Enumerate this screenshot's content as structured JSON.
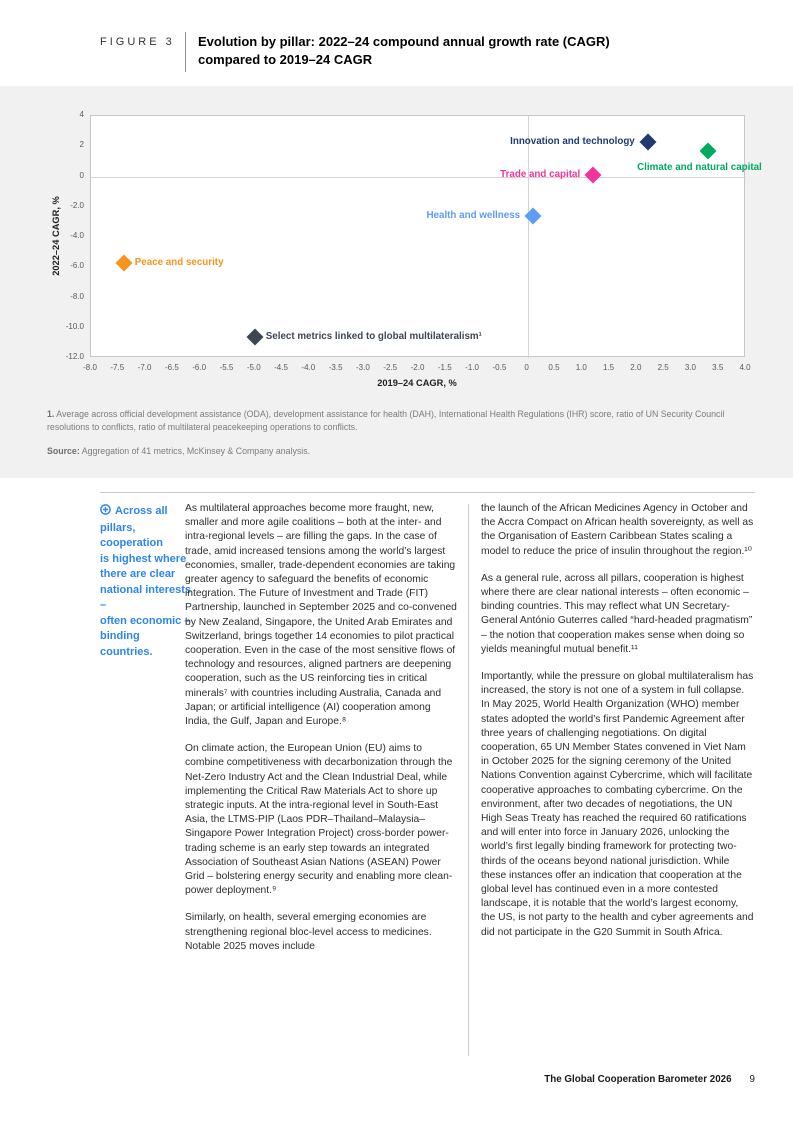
{
  "figure": {
    "label": "FIGURE 3",
    "title_line1": "Evolution by pillar: 2022–24 compound annual growth rate (CAGR)",
    "title_line2": "compared to 2019–24 CAGR"
  },
  "chart_data": {
    "type": "scatter",
    "xlabel": "2019–24 CAGR, %",
    "ylabel": "2022–24 CAGR, %",
    "xlim": [
      -8.0,
      4.0
    ],
    "ylim": [
      -12.0,
      4.0
    ],
    "x_ticks": [
      "-8.0",
      "-7.5",
      "-7.0",
      "-6.5",
      "-6.0",
      "-5.5",
      "-5.0",
      "-4.5",
      "-4.0",
      "-3.5",
      "-3.0",
      "-2.5",
      "-2.0",
      "-1.5",
      "-1.0",
      "-0.5",
      "0",
      "0.5",
      "1.0",
      "1.5",
      "2.0",
      "2.5",
      "3.0",
      "3.5",
      "4.0"
    ],
    "y_ticks": [
      "4",
      "2",
      "0",
      "-2.0",
      "-4.0",
      "-6.0",
      "-8.0",
      "-10.0",
      "-12.0"
    ],
    "grid": "zero-reference-lines-only",
    "legend_position": "labels-next-to-points",
    "points": [
      {
        "label": "Innovation and technology",
        "x": 2.2,
        "y": 2.3,
        "color": "#203a70",
        "label_side": "left"
      },
      {
        "label": "Climate and natural capital",
        "x": 3.3,
        "y": 1.7,
        "color": "#00ab60",
        "label_side": "below"
      },
      {
        "label": "Trade and capital",
        "x": 1.2,
        "y": 0.1,
        "color": "#f5349b",
        "label_side": "left"
      },
      {
        "label": "Health and wellness",
        "x": 0.1,
        "y": -2.6,
        "color": "#5e9cf2",
        "label_side": "left"
      },
      {
        "label": "Peace and security",
        "x": -7.4,
        "y": -5.7,
        "color": "#f7941e",
        "label_side": "right"
      },
      {
        "label": "Select metrics linked to global multilateralism¹",
        "x": -5.0,
        "y": -10.6,
        "color": "#3d4653",
        "label_side": "right"
      }
    ]
  },
  "notes": {
    "note1_prefix": "1.",
    "note1_text": " Average across official development assistance (ODA), development assistance for health (DAH), International Health Regulations (IHR) score, ratio of UN Security Council resolutions to conflicts, ratio of multilateral peacekeeping operations to conflicts.",
    "source_prefix": "Source:",
    "source_text": " Aggregation of 41 metrics, McKinsey & Company analysis."
  },
  "callout": {
    "color": "#2e86ea",
    "text": "Across all\npillars, cooperation\nis highest where\nthere are clear\nnational interests –\noften economic –\nbinding countries."
  },
  "articles": {
    "middle": [
      "As multilateral approaches become more fraught, new, smaller and more agile coalitions – both at the inter- and intra-regional levels – are filling the gaps. In the case of trade, amid increased tensions among the world’s largest economies, smaller, trade-dependent economies are taking greater agency to safeguard the benefits of economic integration. The Future of Investment and Trade (FIT) Partnership, launched in September 2025 and co-convened by New Zealand, Singapore, the United Arab Emirates and Switzerland, brings together 14 economies to pilot practical cooperation. Even in the case of the most sensitive flows of technology and resources, aligned partners are deepening cooperation, such as the US reinforcing ties in critical minerals⁷ with countries including Australia, Canada and Japan; or artificial intelligence (AI) cooperation among India, the Gulf, Japan and Europe.⁸",
      "On climate action, the European Union (EU) aims to combine competitiveness with decarbonization through the Net-Zero Industry Act and the Clean Industrial Deal, while implementing the Critical Raw Materials Act to shore up strategic inputs. At the intra-regional level in South-East Asia, the LTMS-PIP (Laos PDR–Thailand–Malaysia–Singapore Power Integration Project) cross-border power-trading scheme is an early step towards an integrated Association of Southeast Asian Nations (ASEAN) Power Grid – bolstering energy security and enabling more clean-power deployment.⁹",
      "Similarly, on health, several emerging economies are strengthening regional bloc-level access to medicines. Notable 2025 moves include"
    ],
    "right": [
      "the launch of the African Medicines Agency in October and the Accra Compact on African health sovereignty, as well as the Organisation of Eastern Caribbean States scaling a model to reduce the price of insulin throughout the region.¹⁰",
      "As a general rule, across all pillars, cooperation is highest where there are clear national interests – often economic – binding countries. This may reflect what UN Secretary-General António Guterres called “hard-headed pragmatism” – the notion that cooperation makes sense when doing so yields meaningful mutual benefit.¹¹",
      "Importantly, while the pressure on global multilateralism has increased, the story is not one of a system in full collapse. In May 2025, World Health Organization (WHO) member states adopted the world’s first Pandemic Agreement after three years of challenging negotiations. On digital cooperation, 65 UN Member States convened in Viet Nam in October 2025 for the signing ceremony of the United Nations Convention against Cybercrime, which will facilitate cooperative approaches to combating cybercrime. On the environment, after two decades of negotiations, the UN High Seas Treaty has reached the required 60 ratifications and will enter into force in January 2026, unlocking the world’s first legally binding framework for protecting two-thirds of the oceans beyond national jurisdiction. While these instances offer an indication that cooperation at the global level has continued even in a more contested landscape, it is notable that the world’s largest economy, the US, is not party to the health and cyber agreements and did not participate in the G20 Summit in South Africa."
    ]
  },
  "footer": {
    "title": "The Global Cooperation Barometer 2026",
    "page": "9"
  }
}
